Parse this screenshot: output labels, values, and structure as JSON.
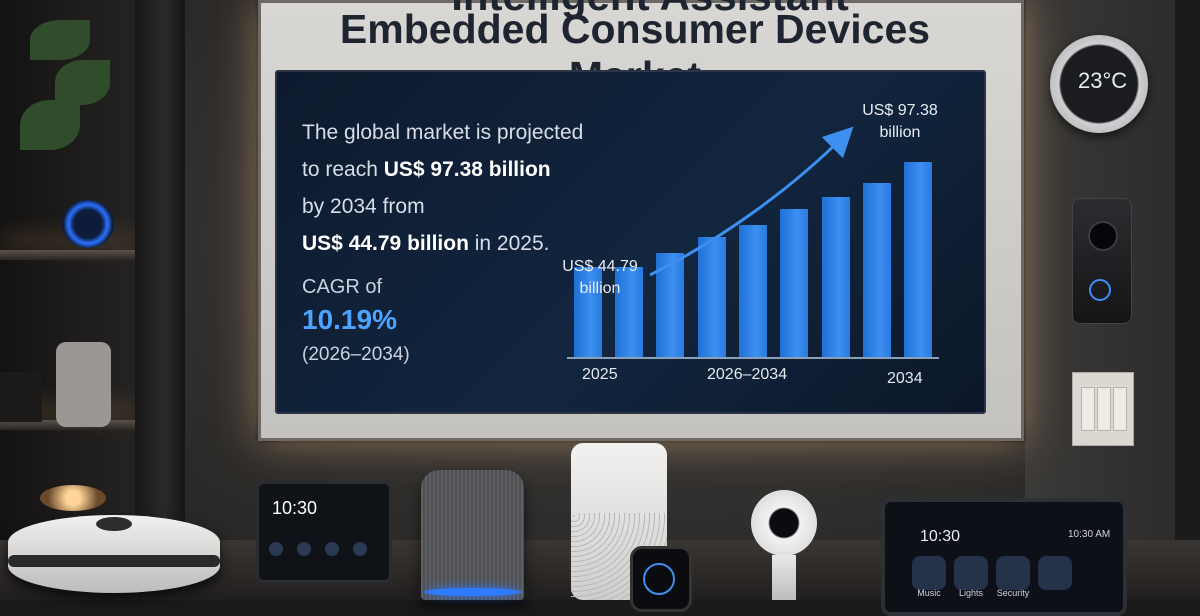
{
  "board": {
    "title_line1": "Intelligent Assistant",
    "title_line2": "Embedded Consumer Devices Market"
  },
  "summary": {
    "line1": "The global market is projected",
    "line2_prefix": "to reach ",
    "line2_value": "US$ 97.38 billion",
    "line3": "by 2034 from",
    "line4_value": "US$ 44.79 billion",
    "line4_suffix": " in 2025.",
    "cagr_label": "CAGR of",
    "cagr_value": "10.19%",
    "cagr_range": "(2026–2034)"
  },
  "chart_data": {
    "type": "bar",
    "values": [
      44.79,
      44.79,
      52,
      60,
      66,
      74,
      80,
      87,
      97.38
    ],
    "start_label_lines": [
      "US$ 44.79",
      "billion"
    ],
    "end_label_lines": [
      "US$ 97.38",
      "billion"
    ],
    "ticks": [
      "2025",
      "2026–2034",
      "2034"
    ]
  },
  "devices": {
    "thermostat_temp": "23°C",
    "hub_time": "10:30",
    "tablet_time": "10:30",
    "tablet_clock": "10:30 AM",
    "tablet_tiles": [
      "Music",
      "Lights",
      "Security",
      ""
    ]
  },
  "colors": {
    "accent_blue": "#3d8ff0",
    "screen_bg": "#12263f"
  }
}
